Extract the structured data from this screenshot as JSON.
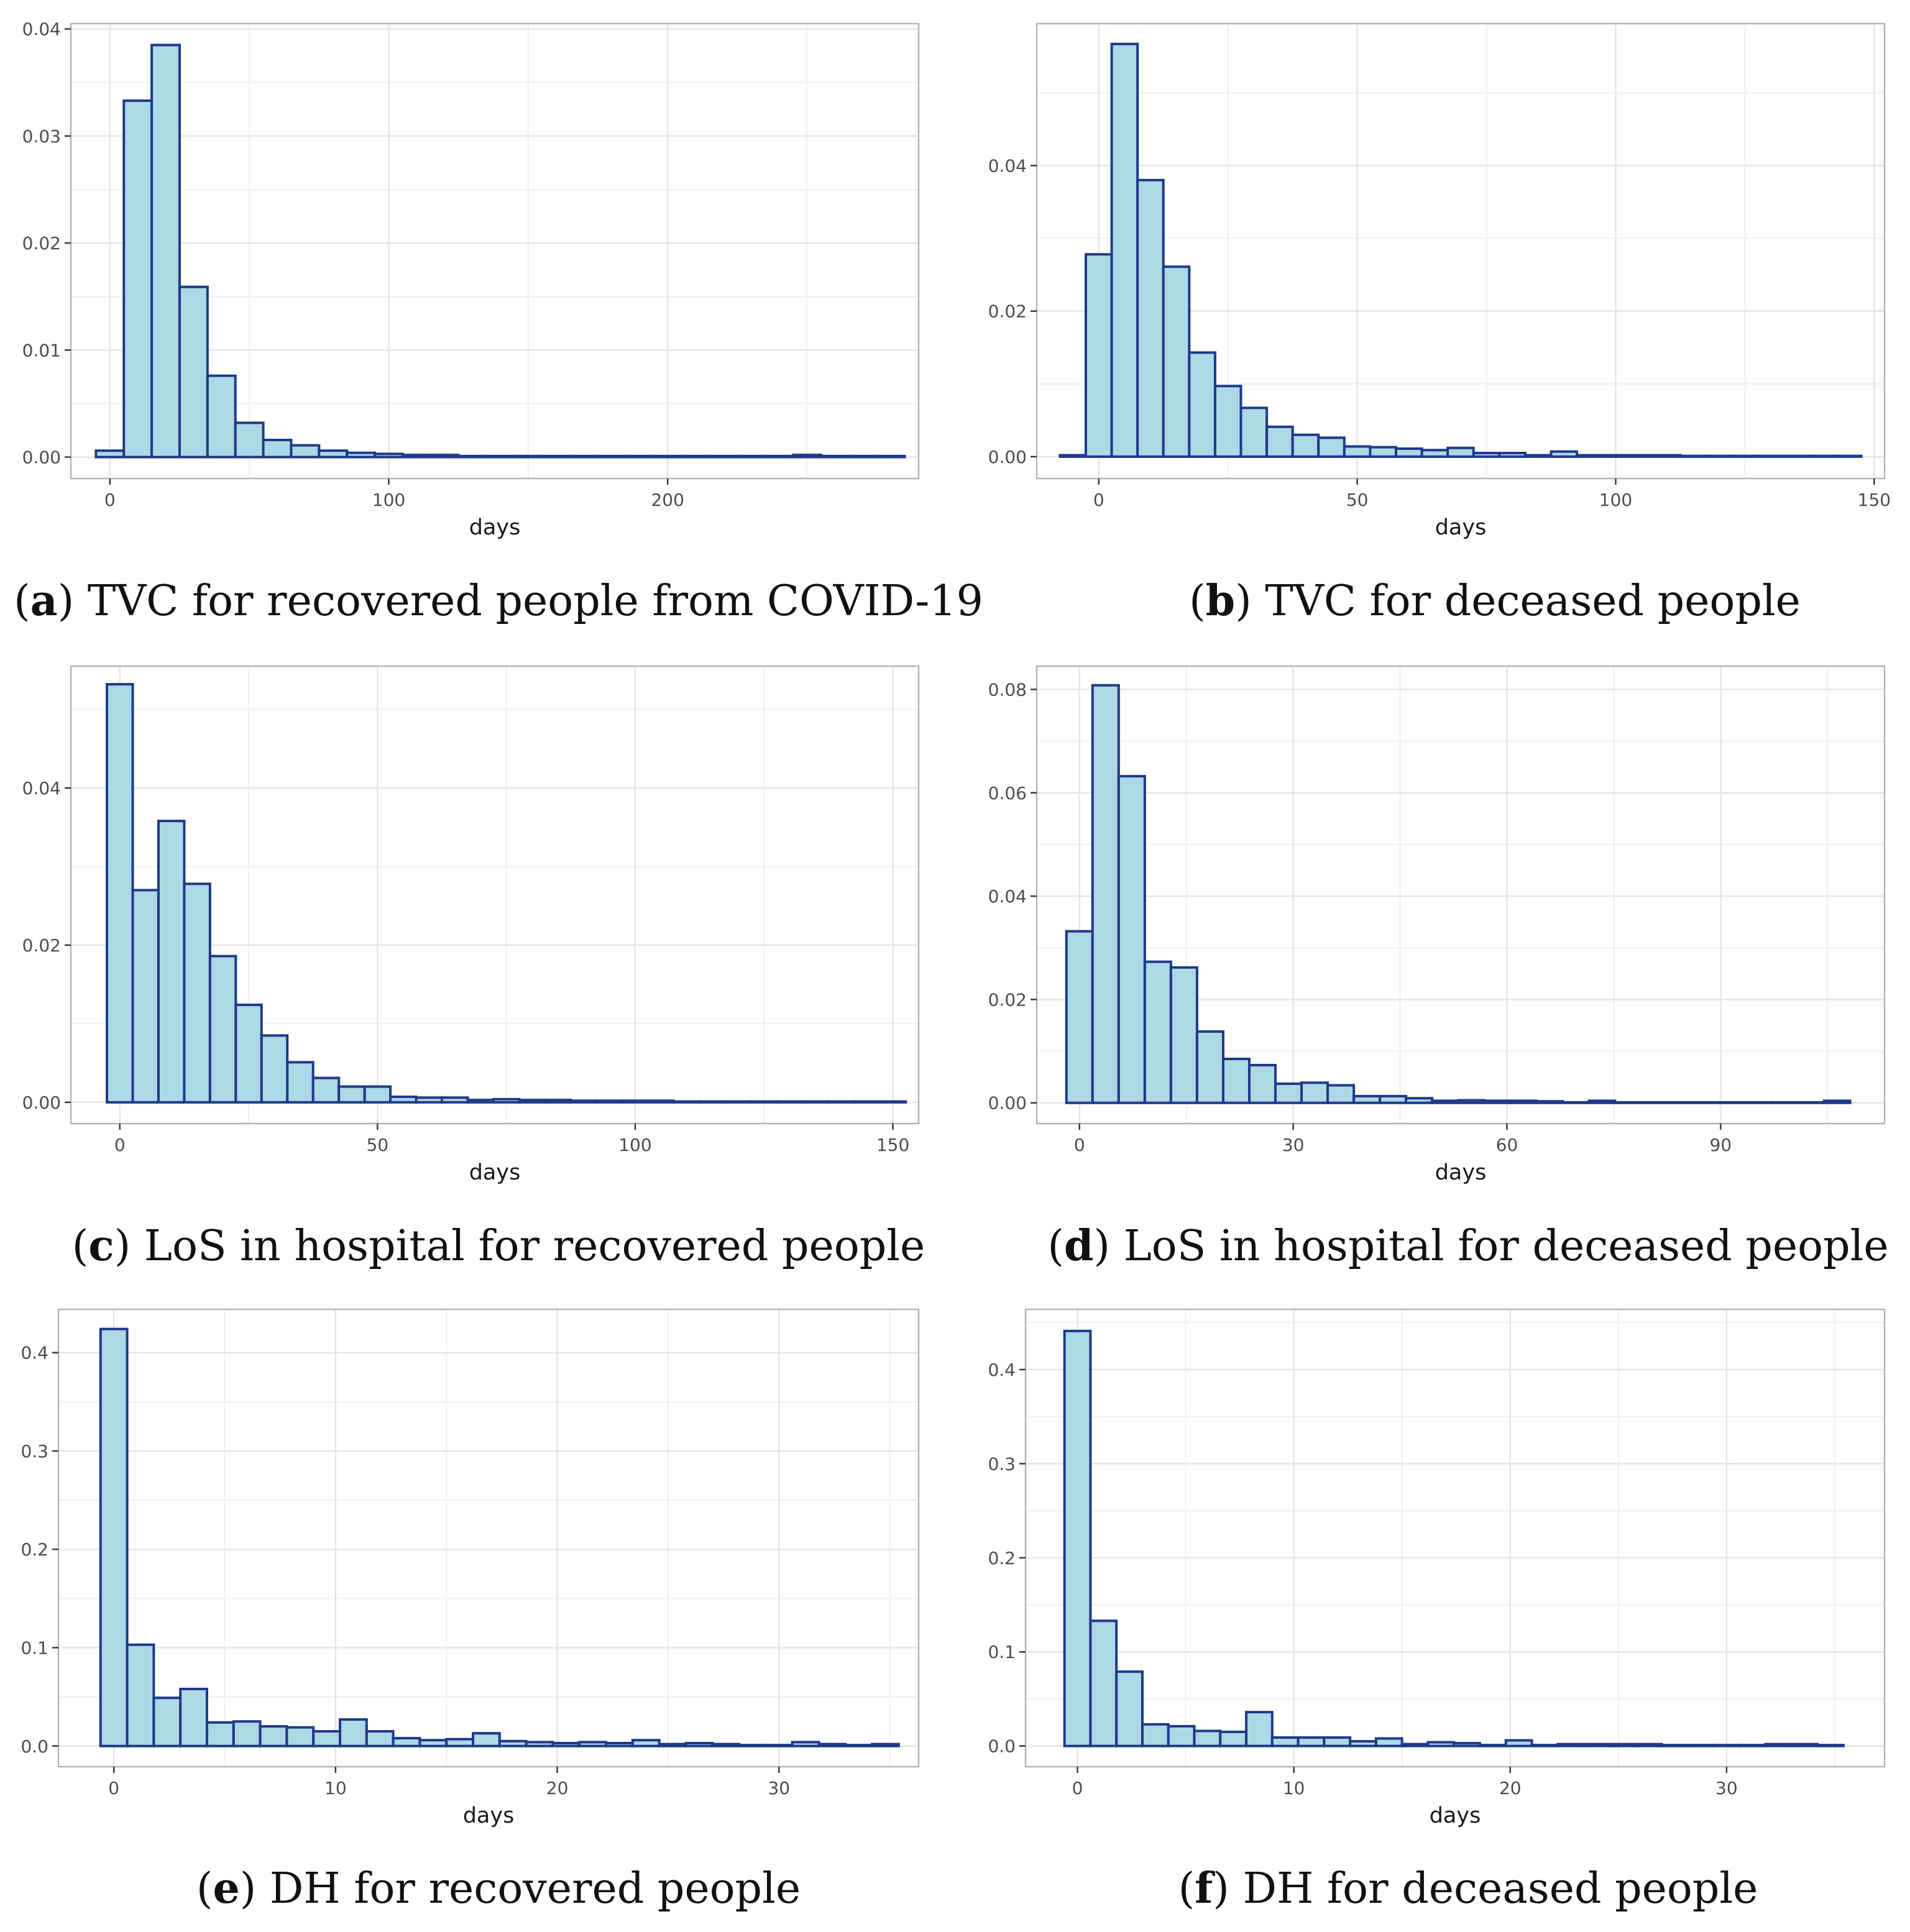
{
  "chart_data": [
    {
      "type": "bar",
      "panel": "a",
      "caption_letter": "a",
      "caption_text": "TVC for recovered people from COVID-19",
      "xlabel": "days",
      "ylabel": "",
      "xlim": [
        -14,
        290
      ],
      "ylim": [
        -0.002,
        0.0405
      ],
      "xticks": [
        0,
        100,
        200
      ],
      "xtick_labels": [
        "0",
        "100",
        "200"
      ],
      "yticks": [
        0,
        0.01,
        0.02,
        0.03,
        0.04
      ],
      "ytick_labels": [
        "0.00",
        "0.01",
        "0.02",
        "0.03",
        "0.04"
      ],
      "bin_start": -5,
      "bin_width": 10,
      "values": [
        0.0006,
        0.0333,
        0.0385,
        0.0159,
        0.0076,
        0.0032,
        0.0016,
        0.0011,
        0.0006,
        0.0004,
        0.0003,
        0.0002,
        0.0002,
        0.0001,
        0.0001,
        0.0001,
        0.0001,
        0.0001,
        0.0001,
        0.0001,
        0.0001,
        0.0001,
        0.0001,
        0.0001,
        0.0001,
        0.0002,
        0.0001,
        0.0001,
        0.0001
      ]
    },
    {
      "type": "bar",
      "panel": "b",
      "caption_letter": "b",
      "caption_text": "TVC for deceased people",
      "xlabel": "days",
      "ylabel": "",
      "xlim": [
        -12,
        152
      ],
      "ylim": [
        -0.003,
        0.0595
      ],
      "xticks": [
        0,
        50,
        100,
        150
      ],
      "xtick_labels": [
        "0",
        "50",
        "100",
        "150"
      ],
      "yticks": [
        0,
        0.02,
        0.04
      ],
      "ytick_labels": [
        "0.00",
        "0.02",
        "0.04"
      ],
      "bin_start": -7.5,
      "bin_width": 5,
      "values": [
        0.0002,
        0.0278,
        0.0567,
        0.038,
        0.0261,
        0.0143,
        0.0097,
        0.0067,
        0.0041,
        0.003,
        0.0026,
        0.0014,
        0.0013,
        0.0011,
        0.0009,
        0.0012,
        0.0005,
        0.0005,
        0.0002,
        0.0007,
        0.0002,
        0.0002,
        0.0002,
        0.0002,
        0.0001,
        0.0001,
        0.0001,
        0.0001,
        0.0001,
        0.0001,
        0.0001
      ]
    },
    {
      "type": "bar",
      "panel": "c",
      "caption_letter": "c",
      "caption_text": "LoS in hospital for recovered people",
      "xlabel": "days",
      "ylabel": "",
      "xlim": [
        -9.5,
        155
      ],
      "ylim": [
        -0.0027,
        0.0555
      ],
      "xticks": [
        0,
        50,
        100,
        150
      ],
      "xtick_labels": [
        "0",
        "50",
        "100",
        "150"
      ],
      "yticks": [
        0,
        0.02,
        0.04
      ],
      "ytick_labels": [
        "0.00",
        "0.02",
        "0.04"
      ],
      "bin_start": -2.5,
      "bin_width": 5,
      "values": [
        0.0532,
        0.027,
        0.0358,
        0.0278,
        0.0186,
        0.0124,
        0.0085,
        0.0051,
        0.0031,
        0.002,
        0.002,
        0.0007,
        0.0006,
        0.0006,
        0.0003,
        0.0004,
        0.0003,
        0.0003,
        0.0002,
        0.0002,
        0.0002,
        0.0002,
        0.0001,
        0.0001,
        0.0001,
        0.0001,
        0.0001,
        0.0001,
        0.0001,
        0.0001,
        0.0001
      ]
    },
    {
      "type": "bar",
      "panel": "d",
      "caption_letter": "d",
      "caption_text": "LoS in hospital for deceased people",
      "xlabel": "days",
      "ylabel": "",
      "xlim": [
        -6,
        113
      ],
      "ylim": [
        -0.004,
        0.0845
      ],
      "xticks": [
        0,
        30,
        60,
        90
      ],
      "xtick_labels": [
        "0",
        "30",
        "60",
        "90"
      ],
      "yticks": [
        0,
        0.02,
        0.04,
        0.06,
        0.08
      ],
      "ytick_labels": [
        "0.00",
        "0.02",
        "0.04",
        "0.06",
        "0.08"
      ],
      "bin_start": -1.833,
      "bin_width": 3.667,
      "values": [
        0.0332,
        0.0808,
        0.0632,
        0.0273,
        0.0262,
        0.0138,
        0.0085,
        0.0073,
        0.0037,
        0.0039,
        0.0034,
        0.0013,
        0.0013,
        0.0009,
        0.0004,
        0.0005,
        0.0004,
        0.0004,
        0.0003,
        0.0001,
        0.0004,
        0.0001,
        0.0001,
        0.0001,
        0.0001,
        0.0001,
        0.0001,
        0.0001,
        0.0001,
        0.0004
      ]
    },
    {
      "type": "bar",
      "panel": "e",
      "caption_letter": "e",
      "caption_text": "DH for recovered people",
      "xlabel": "days",
      "ylabel": "",
      "xlim": [
        -2.5,
        36.3
      ],
      "ylim": [
        -0.021,
        0.444
      ],
      "xticks": [
        0,
        10,
        20,
        30
      ],
      "xtick_labels": [
        "0",
        "10",
        "20",
        "30"
      ],
      "yticks": [
        0,
        0.1,
        0.2,
        0.3,
        0.4
      ],
      "ytick_labels": [
        "0.0",
        "0.1",
        "0.2",
        "0.3",
        "0.4"
      ],
      "bin_start": -0.6,
      "bin_width": 1.2,
      "values": [
        0.424,
        0.103,
        0.049,
        0.058,
        0.024,
        0.025,
        0.02,
        0.019,
        0.015,
        0.027,
        0.015,
        0.008,
        0.006,
        0.007,
        0.013,
        0.005,
        0.004,
        0.003,
        0.004,
        0.003,
        0.006,
        0.002,
        0.003,
        0.002,
        0.001,
        0.001,
        0.004,
        0.002,
        0.001,
        0.002
      ]
    },
    {
      "type": "bar",
      "panel": "f",
      "caption_letter": "f",
      "caption_text": "DH for deceased people",
      "xlabel": "days",
      "ylabel": "",
      "xlim": [
        -2.4,
        37.3
      ],
      "ylim": [
        -0.022,
        0.464
      ],
      "xticks": [
        0,
        10,
        20,
        30
      ],
      "xtick_labels": [
        "0",
        "10",
        "20",
        "30"
      ],
      "yticks": [
        0,
        0.1,
        0.2,
        0.3,
        0.4
      ],
      "ytick_labels": [
        "0.0",
        "0.1",
        "0.2",
        "0.3",
        "0.4"
      ],
      "bin_start": -0.6,
      "bin_width": 1.2,
      "values": [
        0.441,
        0.133,
        0.079,
        0.023,
        0.021,
        0.016,
        0.015,
        0.036,
        0.009,
        0.009,
        0.009,
        0.005,
        0.008,
        0.002,
        0.004,
        0.003,
        0.001,
        0.006,
        0.001,
        0.002,
        0.002,
        0.002,
        0.002,
        0.001,
        0.001,
        0.001,
        0.001,
        0.002,
        0.002,
        0.001
      ]
    }
  ],
  "colors": {
    "bar_fill": "#add8e6",
    "bar_stroke": "#1e3a8a",
    "panel_border": "#b3b3b3",
    "grid_major": "#e5e5e5",
    "grid_minor": "#f0f0f0",
    "tick_text": "#4d4d4d"
  }
}
